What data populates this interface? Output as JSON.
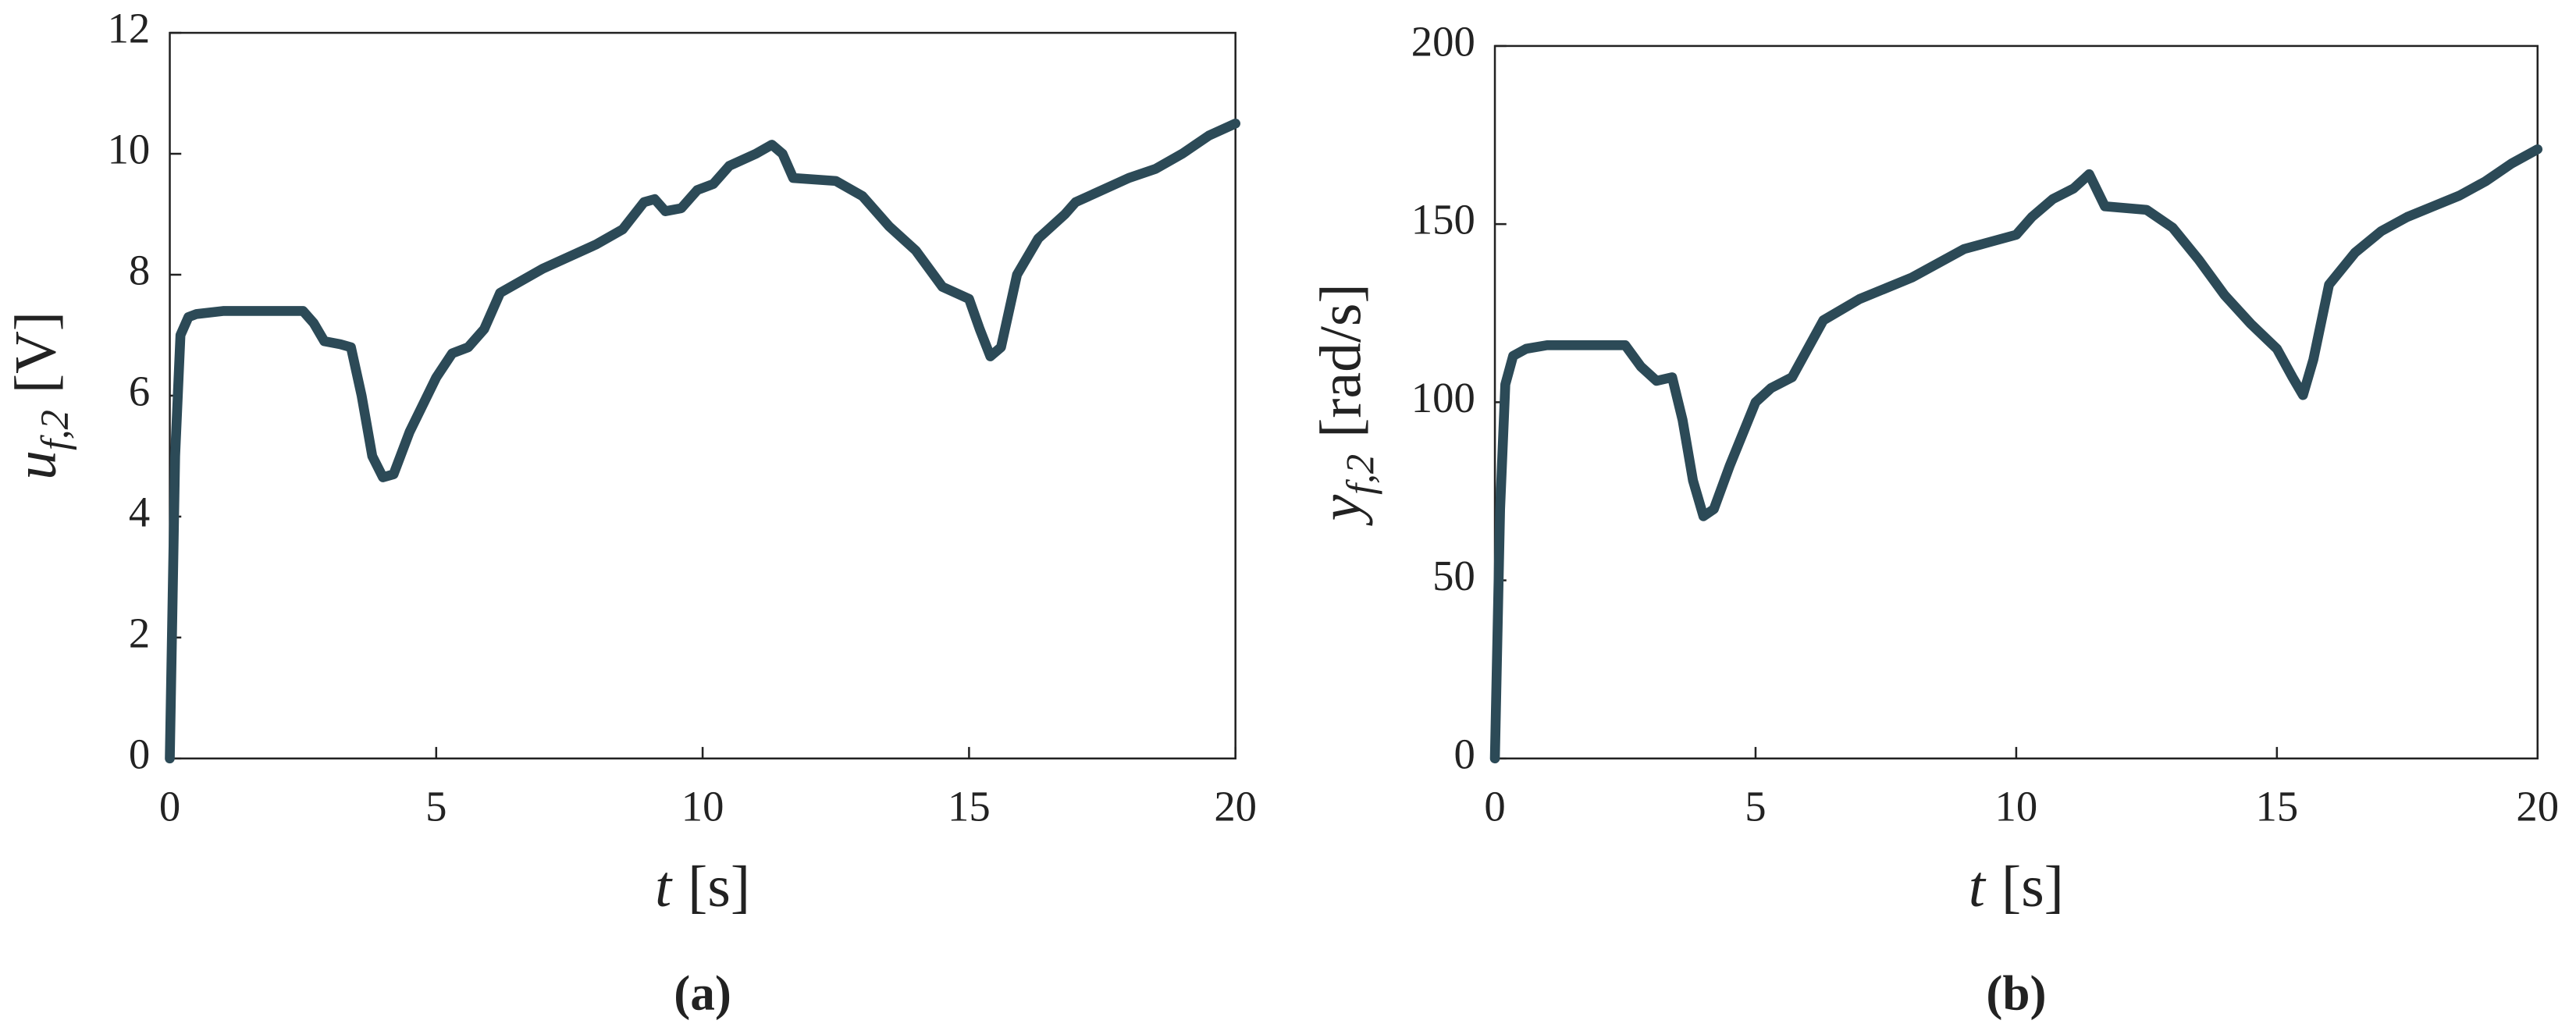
{
  "chart_data": [
    {
      "type": "line",
      "caption": "(a)",
      "x_label": {
        "symbol": "t",
        "unit": "[s]"
      },
      "y_label": {
        "symbol": "u",
        "subscript": "f,2",
        "unit": "[V]"
      },
      "color": "#2c4a57",
      "xlim": [
        0,
        20
      ],
      "xticks": [
        0,
        5,
        10,
        15,
        20
      ],
      "ylim": [
        0,
        12
      ],
      "yticks": [
        0,
        2,
        4,
        6,
        8,
        10,
        12
      ],
      "x": [
        0,
        0.1,
        0.2,
        0.35,
        0.5,
        1,
        1.5,
        2,
        2.5,
        2.7,
        2.9,
        3.2,
        3.4,
        3.6,
        3.8,
        4.0,
        4.2,
        4.5,
        5,
        5.3,
        5.6,
        5.9,
        6.2,
        6.5,
        7,
        7.5,
        8,
        8.5,
        8.9,
        9.1,
        9.3,
        9.6,
        9.9,
        10.2,
        10.5,
        11,
        11.3,
        11.5,
        11.7,
        12.5,
        13,
        13.5,
        14,
        14.5,
        15,
        15.2,
        15.4,
        15.6,
        15.9,
        16.3,
        16.8,
        17,
        17.5,
        18,
        18.5,
        19,
        19.5,
        20
      ],
      "values": [
        0,
        5,
        7,
        7.3,
        7.35,
        7.4,
        7.4,
        7.4,
        7.4,
        7.2,
        6.9,
        6.85,
        6.8,
        6.0,
        5.0,
        4.65,
        4.7,
        5.4,
        6.3,
        6.7,
        6.8,
        7.1,
        7.7,
        7.85,
        8.1,
        8.3,
        8.5,
        8.75,
        9.2,
        9.25,
        9.05,
        9.1,
        9.4,
        9.5,
        9.8,
        10.0,
        10.15,
        10.0,
        9.6,
        9.55,
        9.3,
        8.8,
        8.4,
        7.8,
        7.6,
        7.1,
        6.65,
        6.8,
        8.0,
        8.6,
        9.0,
        9.2,
        9.4,
        9.6,
        9.75,
        10.0,
        10.3,
        10.5
      ]
    },
    {
      "type": "line",
      "caption": "(b)",
      "x_label": {
        "symbol": "t",
        "unit": "[s]"
      },
      "y_label": {
        "symbol": "y",
        "subscript": "f,2",
        "unit": "[rad/s]"
      },
      "color": "#2c4a57",
      "xlim": [
        0,
        20
      ],
      "xticks": [
        0,
        5,
        10,
        15,
        20
      ],
      "ylim": [
        0,
        200
      ],
      "yticks": [
        0,
        50,
        100,
        150,
        200
      ],
      "x": [
        0,
        0.1,
        0.2,
        0.35,
        0.6,
        1,
        2,
        2.5,
        2.8,
        3.1,
        3.4,
        3.6,
        3.8,
        4.0,
        4.2,
        4.5,
        5,
        5.3,
        5.7,
        6,
        6.3,
        7,
        8,
        9,
        9.5,
        10,
        10.3,
        10.7,
        11.1,
        11.4,
        11.7,
        12.5,
        13,
        13.5,
        14,
        14.5,
        15,
        15.3,
        15.5,
        15.7,
        16,
        16.5,
        17,
        17.5,
        18,
        18.5,
        19,
        19.5,
        20
      ],
      "values": [
        0,
        70,
        105,
        113,
        115,
        116,
        116,
        116,
        110,
        106,
        107,
        95,
        78,
        68,
        70,
        82,
        100,
        104,
        107,
        115,
        123,
        129,
        135,
        143,
        145,
        147,
        152,
        157,
        160,
        164,
        155,
        154,
        149,
        140,
        130,
        122,
        115,
        107,
        102,
        112,
        133,
        142,
        148,
        152,
        155,
        158,
        162,
        167,
        171
      ]
    }
  ]
}
